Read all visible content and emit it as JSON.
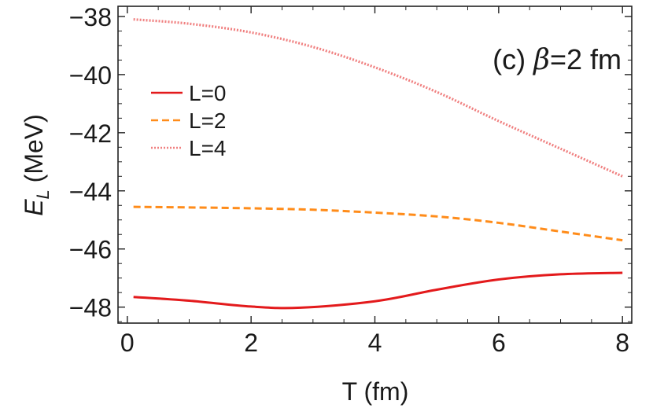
{
  "chart_data": {
    "type": "line",
    "panel_label": "(c) ",
    "panel_beta_symbol": "β",
    "panel_beta_value": "=2 fm",
    "xlabel": "T (fm)",
    "ylabel_main": "E",
    "ylabel_sub": "L",
    "ylabel_rest": " (MeV)",
    "xlim": [
      -0.15,
      8.15
    ],
    "ylim": [
      -48.55,
      -37.65
    ],
    "xticks": [
      0,
      2,
      4,
      6,
      8
    ],
    "xtick_labels": [
      "0",
      "2",
      "4",
      "6",
      "8"
    ],
    "yticks": [
      -38,
      -40,
      -42,
      -44,
      -46,
      -48
    ],
    "ytick_labels": [
      "−38",
      "−40",
      "−42",
      "−44",
      "−46",
      "−48"
    ],
    "grid": false,
    "legend_position": "upper-left",
    "series": [
      {
        "name": "L=0",
        "color": "#e31a1c",
        "style": "solid",
        "x": [
          0.1,
          1,
          2,
          2.8,
          4,
          5,
          6,
          7,
          8
        ],
        "y": [
          -47.65,
          -47.78,
          -47.98,
          -48.02,
          -47.8,
          -47.4,
          -47.05,
          -46.87,
          -46.82
        ]
      },
      {
        "name": "L=2",
        "color": "#ff8c1a",
        "style": "dashed",
        "x": [
          0.1,
          1,
          2,
          3,
          4,
          5,
          6,
          7,
          8
        ],
        "y": [
          -44.55,
          -44.57,
          -44.6,
          -44.65,
          -44.75,
          -44.88,
          -45.1,
          -45.4,
          -45.7
        ]
      },
      {
        "name": "L=4",
        "color": "#f08080",
        "style": "dotted",
        "x": [
          0.1,
          1,
          2,
          3,
          4,
          5,
          6,
          7,
          8
        ],
        "y": [
          -38.1,
          -38.25,
          -38.55,
          -39.05,
          -39.75,
          -40.6,
          -41.6,
          -42.55,
          -43.5
        ]
      }
    ]
  }
}
